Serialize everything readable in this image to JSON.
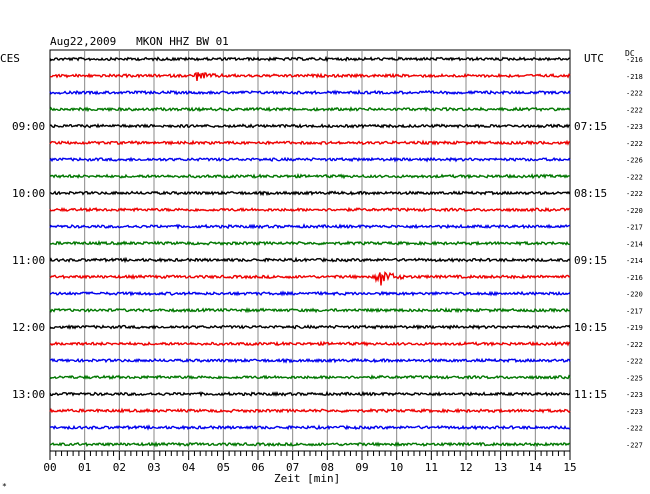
{
  "chart_data": {
    "type": "line",
    "title": "Aug22,2009   MKON HHZ BW 01",
    "left_timezone": "CES",
    "right_timezone": "UTC",
    "dc_label": "DC",
    "xlabel": "Zeit [min]",
    "x_ticks": [
      "00",
      "01",
      "02",
      "03",
      "04",
      "05",
      "06",
      "07",
      "08",
      "09",
      "10",
      "11",
      "12",
      "13",
      "14",
      "15"
    ],
    "xlim": [
      0,
      15
    ],
    "grid": true,
    "trace_colors": [
      "#000000",
      "#ee0000",
      "#0000ee",
      "#007700"
    ],
    "left_hour_labels": [
      {
        "row": 4,
        "label": "09:00"
      },
      {
        "row": 8,
        "label": "10:00"
      },
      {
        "row": 12,
        "label": "11:00"
      },
      {
        "row": 16,
        "label": "12:00"
      },
      {
        "row": 20,
        "label": "13:00"
      }
    ],
    "right_hour_labels": [
      {
        "row": 4,
        "label": "07:15"
      },
      {
        "row": 8,
        "label": "08:15"
      },
      {
        "row": 12,
        "label": "09:15"
      },
      {
        "row": 16,
        "label": "10:15"
      },
      {
        "row": 20,
        "label": "11:15"
      }
    ],
    "dc_offsets": [
      "-216",
      "-218",
      "-222",
      "-222",
      "-223",
      "-222",
      "-226",
      "-222",
      "-222",
      "-220",
      "-217",
      "-214",
      "-214",
      "-216",
      "-220",
      "-217",
      "-219",
      "-222",
      "-222",
      "-225",
      "-223",
      "-223",
      "-222",
      "-227"
    ],
    "events": [
      {
        "row": 1,
        "minute": 4.2,
        "amplitude": 5
      },
      {
        "row": 13,
        "minute": 9.5,
        "amplitude": 10
      }
    ]
  },
  "footnote_mark": "*"
}
